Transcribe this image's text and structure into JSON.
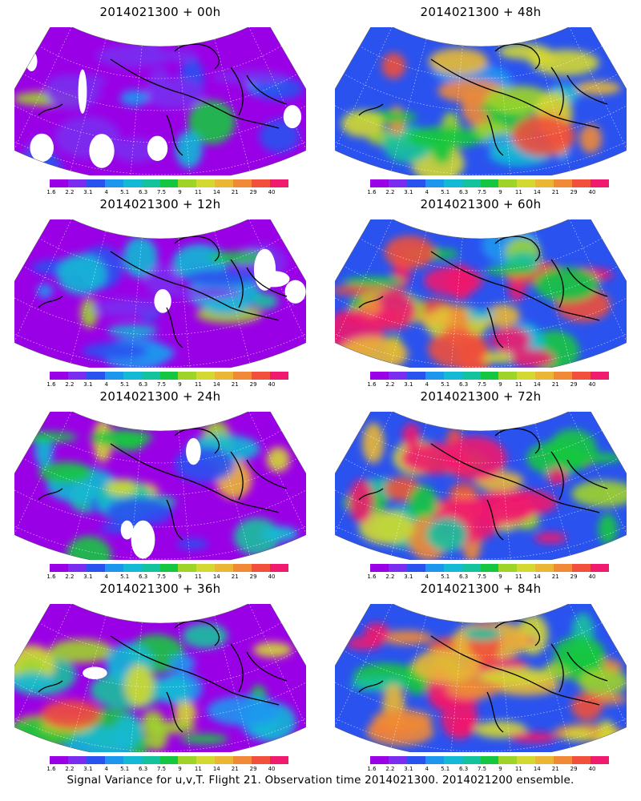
{
  "panels": [
    {
      "title": "2014021300 + 00h",
      "intensity": 0.05
    },
    {
      "title": "2014021300 + 48h",
      "intensity": 0.55
    },
    {
      "title": "2014021300 + 12h",
      "intensity": 0.18
    },
    {
      "title": "2014021300 + 60h",
      "intensity": 0.68
    },
    {
      "title": "2014021300 + 24h",
      "intensity": 0.3
    },
    {
      "title": "2014021300 + 72h",
      "intensity": 0.78
    },
    {
      "title": "2014021300 + 36h",
      "intensity": 0.42
    },
    {
      "title": "2014021300 + 84h",
      "intensity": 0.85
    }
  ],
  "colorbar": {
    "labels": [
      "1.6",
      "2.2",
      "3.1",
      "4",
      "5.1",
      "6.3",
      "7.5",
      "9",
      "11",
      "14",
      "21",
      "29",
      "40"
    ],
    "colors": [
      "#9a00e6",
      "#7a2cf0",
      "#2a52ef",
      "#1c96ef",
      "#13b9d5",
      "#14c29e",
      "#15c640",
      "#9ed42a",
      "#d3d832",
      "#e9b735",
      "#f08a36",
      "#f0503c",
      "#f01a6e"
    ]
  },
  "caption": "Signal Variance for u,v,T. Flight 21. Observation time 2014021300. 2014021200 ensemble."
}
